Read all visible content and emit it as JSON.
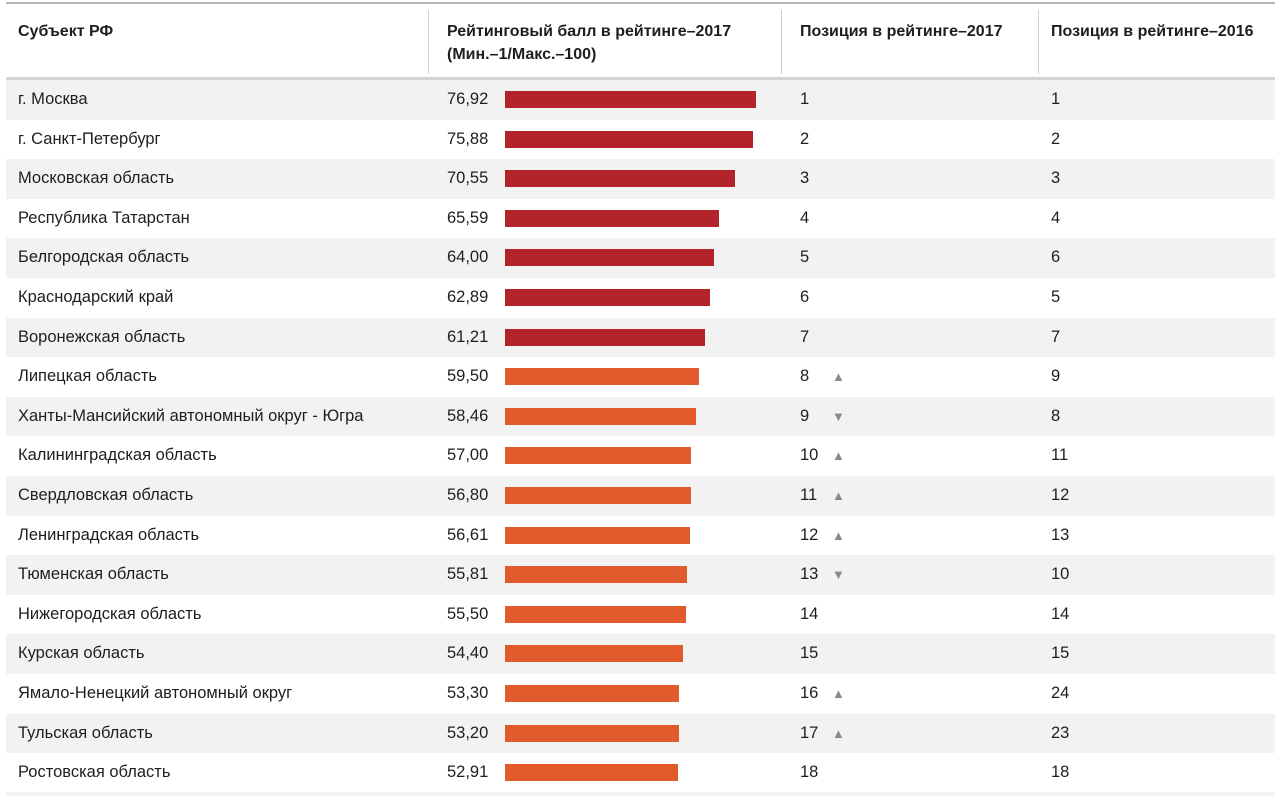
{
  "table": {
    "headers": {
      "region": "Субъект РФ",
      "score_line1": "Рейтинговый балл в рейтинге–2017",
      "score_line2": "(Мин.–1/Макс.–100)",
      "pos2017": "Позиция в рейтинге–2017",
      "pos2016": "Позиция в рейтинге–2016"
    },
    "colors": {
      "top_group": "#b2242a",
      "rest_group": "#e05a2b",
      "trend_arrow": "#8a8a8a",
      "alt_row": "#f2f2f2"
    },
    "trend_icons": {
      "up": "▲",
      "down": "▼",
      "none": ""
    }
  },
  "chart_data": {
    "type": "bar",
    "orientation": "horizontal",
    "title": "",
    "xlabel": "Рейтинговый балл в рейтинге–2017 (Мин.–1/Макс.–100)",
    "ylabel": "Субъект РФ",
    "xlim": [
      0,
      100
    ],
    "grid": false,
    "legend": "none",
    "rows": [
      {
        "region": "г. Москва",
        "score": 76.92,
        "score_label": "76,92",
        "pos2017": "1",
        "pos2016": "1",
        "trend": "none",
        "group": "top"
      },
      {
        "region": "г. Санкт-Петербург",
        "score": 75.88,
        "score_label": "75,88",
        "pos2017": "2",
        "pos2016": "2",
        "trend": "none",
        "group": "top"
      },
      {
        "region": "Московская область",
        "score": 70.55,
        "score_label": "70,55",
        "pos2017": "3",
        "pos2016": "3",
        "trend": "none",
        "group": "top"
      },
      {
        "region": "Республика Татарстан",
        "score": 65.59,
        "score_label": "65,59",
        "pos2017": "4",
        "pos2016": "4",
        "trend": "none",
        "group": "top"
      },
      {
        "region": "Белгородская область",
        "score": 64.0,
        "score_label": "64,00",
        "pos2017": "5",
        "pos2016": "6",
        "trend": "none",
        "group": "top"
      },
      {
        "region": "Краснодарский край",
        "score": 62.89,
        "score_label": "62,89",
        "pos2017": "6",
        "pos2016": "5",
        "trend": "none",
        "group": "top"
      },
      {
        "region": "Воронежская область",
        "score": 61.21,
        "score_label": "61,21",
        "pos2017": "7",
        "pos2016": "7",
        "trend": "none",
        "group": "top"
      },
      {
        "region": "Липецкая область",
        "score": 59.5,
        "score_label": "59,50",
        "pos2017": "8",
        "pos2016": "9",
        "trend": "up",
        "group": "rest"
      },
      {
        "region": "Ханты-Мансийский автономный округ - Югра",
        "score": 58.46,
        "score_label": "58,46",
        "pos2017": "9",
        "pos2016": "8",
        "trend": "down",
        "group": "rest"
      },
      {
        "region": "Калининградская область",
        "score": 57.0,
        "score_label": "57,00",
        "pos2017": "10",
        "pos2016": "11",
        "trend": "up",
        "group": "rest"
      },
      {
        "region": "Свердловская область",
        "score": 56.8,
        "score_label": "56,80",
        "pos2017": "11",
        "pos2016": "12",
        "trend": "up",
        "group": "rest"
      },
      {
        "region": "Ленинградская область",
        "score": 56.61,
        "score_label": "56,61",
        "pos2017": "12",
        "pos2016": "13",
        "trend": "up",
        "group": "rest"
      },
      {
        "region": "Тюменская область",
        "score": 55.81,
        "score_label": "55,81",
        "pos2017": "13",
        "pos2016": "10",
        "trend": "down",
        "group": "rest"
      },
      {
        "region": "Нижегородская область",
        "score": 55.5,
        "score_label": "55,50",
        "pos2017": "14",
        "pos2016": "14",
        "trend": "none",
        "group": "rest"
      },
      {
        "region": "Курская область",
        "score": 54.4,
        "score_label": "54,40",
        "pos2017": "15",
        "pos2016": "15",
        "trend": "none",
        "group": "rest"
      },
      {
        "region": "Ямало-Ненецкий автономный округ",
        "score": 53.3,
        "score_label": "53,30",
        "pos2017": "16",
        "pos2016": "24",
        "trend": "up",
        "group": "rest"
      },
      {
        "region": "Тульская область",
        "score": 53.2,
        "score_label": "53,20",
        "pos2017": "17",
        "pos2016": "23",
        "trend": "up",
        "group": "rest"
      },
      {
        "region": "Ростовская область",
        "score": 52.91,
        "score_label": "52,91",
        "pos2017": "18",
        "pos2016": "18",
        "trend": "none",
        "group": "rest"
      }
    ]
  }
}
